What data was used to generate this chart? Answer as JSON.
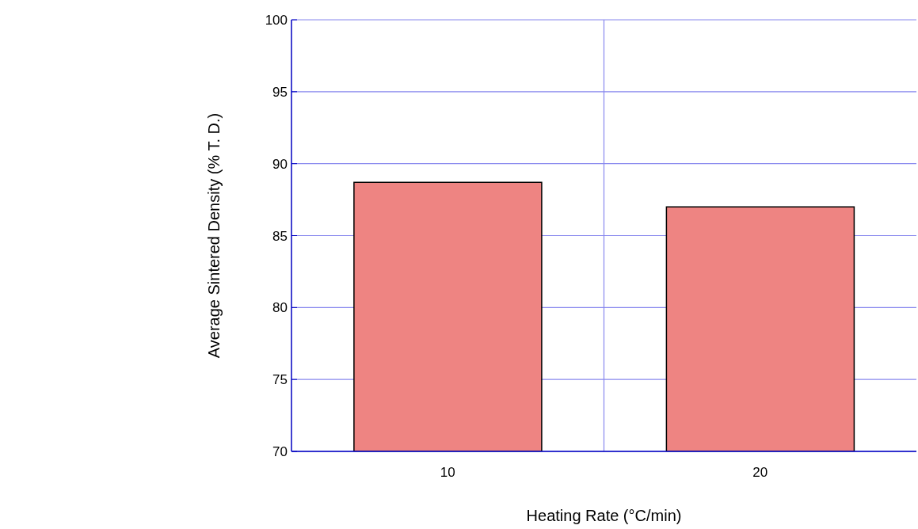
{
  "chart_data": {
    "type": "bar",
    "xlabel": "Heating Rate (°C/min)",
    "ylabel": "Average Sintered Density (% T. D.)",
    "categories": [
      "10",
      "20"
    ],
    "values": [
      88.7,
      87.0
    ],
    "color": "#ee8482",
    "ylim": [
      70,
      100
    ],
    "yticks": [
      70,
      75,
      80,
      85,
      90,
      95,
      100
    ],
    "grid": true
  }
}
